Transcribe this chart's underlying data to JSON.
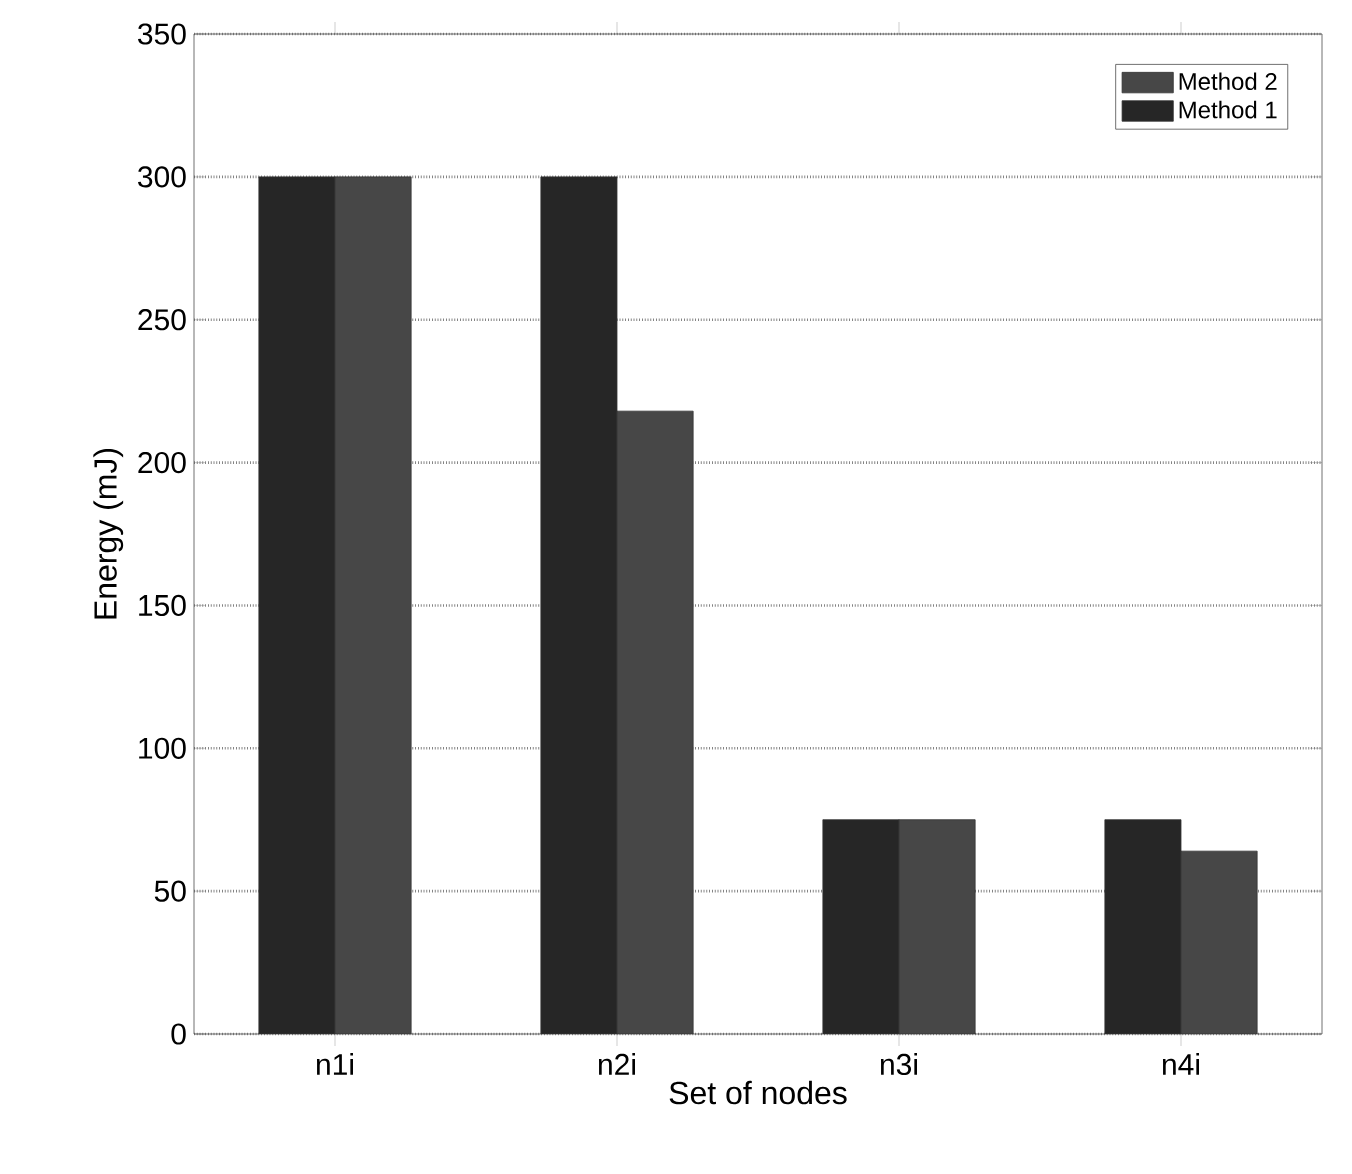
{
  "chart_data": {
    "type": "bar",
    "xlabel": "Set of nodes",
    "ylabel": "Energy (mJ)",
    "categories": [
      "n1i",
      "n2i",
      "n3i",
      "n4i"
    ],
    "series": [
      {
        "name": "Method 1",
        "color": "#262626",
        "values": [
          300,
          300,
          75,
          75
        ]
      },
      {
        "name": "Method 2",
        "color": "#474747",
        "values": [
          300,
          218,
          75,
          64
        ]
      }
    ],
    "ylim": [
      0,
      350
    ],
    "yticks": [
      0,
      50,
      100,
      150,
      200,
      250,
      300,
      350
    ],
    "grid": "y",
    "legend": "top right"
  }
}
